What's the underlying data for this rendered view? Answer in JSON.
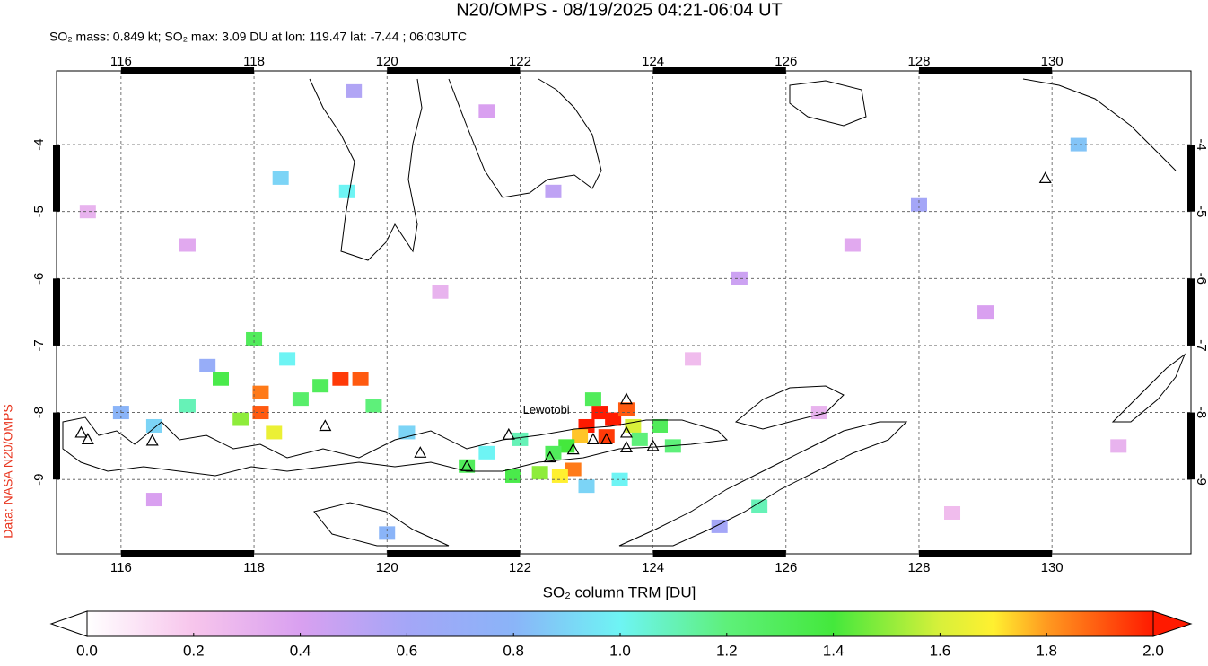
{
  "map": {
    "title": "N20/OMPS - 08/19/2025 04:21-06:04 UT",
    "subtitle": "SO₂ mass: 0.849 kt; SO₂ max: 3.09 DU at lon: 119.47 lat: -7.44 ; 06:03UTC",
    "credit": "Data: NASA N20/OMPS",
    "volcano_label": "Lewotobi",
    "xlim": [
      115.03,
      132.09
    ],
    "ylim": [
      -10.11,
      -2.9
    ],
    "xticks": [
      116,
      118,
      120,
      122,
      124,
      126,
      128,
      130
    ],
    "yticks": [
      -4,
      -5,
      -6,
      -7,
      -8,
      -9
    ],
    "grid": true,
    "colorbar": {
      "label": "SO₂ column TRM [DU]",
      "lim": [
        0,
        2
      ],
      "ticks": [
        {
          "value": 0,
          "label": "0.0"
        },
        {
          "value": 0.2,
          "label": "0.2"
        },
        {
          "value": 0.4,
          "label": "0.4"
        },
        {
          "value": 0.6,
          "label": "0.6"
        },
        {
          "value": 0.8,
          "label": "0.8"
        },
        {
          "value": 1,
          "label": "1.0"
        },
        {
          "value": 1.2,
          "label": "1.2"
        },
        {
          "value": 1.4,
          "label": "1.4"
        },
        {
          "value": 1.6,
          "label": "1.6"
        },
        {
          "value": 1.8,
          "label": "1.8"
        },
        {
          "value": 2,
          "label": "2.0"
        }
      ]
    },
    "colormap": [
      [
        0,
        "#ffffff"
      ],
      [
        0.2,
        "#f7c5ec"
      ],
      [
        0.4,
        "#d9a0f0"
      ],
      [
        0.6,
        "#a4a6f7"
      ],
      [
        0.8,
        "#8ab4f8"
      ],
      [
        1,
        "#6ef4f4"
      ],
      [
        1.2,
        "#5ef07a"
      ],
      [
        1.4,
        "#44e83c"
      ],
      [
        1.6,
        "#d8f03a"
      ],
      [
        1.7,
        "#fff030"
      ],
      [
        1.8,
        "#ff9a20"
      ],
      [
        2,
        "#ff1a00"
      ]
    ],
    "cells": [
      [
        123.2,
        -8.0,
        2.0
      ],
      [
        123.4,
        -8.1,
        2.0
      ],
      [
        123.0,
        -8.2,
        2.0
      ],
      [
        123.3,
        -8.35,
        1.95
      ],
      [
        123.6,
        -7.95,
        1.9
      ],
      [
        122.9,
        -8.35,
        1.75
      ],
      [
        123.7,
        -8.2,
        1.6
      ],
      [
        122.7,
        -8.5,
        1.4
      ],
      [
        122.5,
        -8.6,
        1.3
      ],
      [
        122.8,
        -8.85,
        1.85
      ],
      [
        122.6,
        -8.95,
        1.7
      ],
      [
        122.3,
        -8.9,
        1.5
      ],
      [
        121.9,
        -8.95,
        1.35
      ],
      [
        123.1,
        -7.8,
        1.3
      ],
      [
        123.8,
        -8.4,
        1.2
      ],
      [
        124.1,
        -8.2,
        1.3
      ],
      [
        124.3,
        -8.5,
        1.2
      ],
      [
        121.5,
        -8.6,
        1.0
      ],
      [
        121.2,
        -8.8,
        1.3
      ],
      [
        122.0,
        -8.4,
        1.1
      ],
      [
        123.0,
        -9.1,
        0.9
      ],
      [
        123.5,
        -9.0,
        1.0
      ],
      [
        118.1,
        -7.7,
        1.85
      ],
      [
        118.1,
        -8.0,
        1.9
      ],
      [
        118.3,
        -8.3,
        1.65
      ],
      [
        119.3,
        -7.5,
        1.95
      ],
      [
        119.6,
        -7.5,
        1.9
      ],
      [
        119.0,
        -7.6,
        1.3
      ],
      [
        117.8,
        -8.1,
        1.5
      ],
      [
        117.5,
        -7.5,
        1.35
      ],
      [
        118.7,
        -7.8,
        1.25
      ],
      [
        117.0,
        -7.9,
        1.1
      ],
      [
        116.5,
        -8.2,
        0.9
      ],
      [
        118.0,
        -6.9,
        1.3
      ],
      [
        118.5,
        -7.2,
        1.0
      ],
      [
        119.8,
        -7.9,
        1.2
      ],
      [
        120.3,
        -8.3,
        0.9
      ],
      [
        116.0,
        -8.0,
        0.8
      ],
      [
        117.3,
        -7.3,
        0.7
      ],
      [
        119.5,
        -3.2,
        0.55
      ],
      [
        122.5,
        -4.7,
        0.5
      ],
      [
        125.3,
        -6.0,
        0.45
      ],
      [
        127.0,
        -5.5,
        0.35
      ],
      [
        130.4,
        -4.0,
        0.85
      ],
      [
        128.0,
        -4.9,
        0.6
      ],
      [
        126.5,
        -8.0,
        0.3
      ],
      [
        129.0,
        -6.5,
        0.4
      ],
      [
        121.5,
        -3.5,
        0.4
      ],
      [
        115.5,
        -5.0,
        0.3
      ],
      [
        117.0,
        -5.5,
        0.35
      ],
      [
        125.0,
        -9.7,
        0.6
      ],
      [
        125.6,
        -9.4,
        1.1
      ],
      [
        120.0,
        -9.8,
        0.8
      ],
      [
        116.5,
        -9.3,
        0.4
      ],
      [
        131.0,
        -8.5,
        0.3
      ],
      [
        124.6,
        -7.2,
        0.25
      ],
      [
        128.5,
        -9.5,
        0.25
      ],
      [
        120.8,
        -6.2,
        0.3
      ],
      [
        118.4,
        -4.5,
        0.9
      ],
      [
        119.4,
        -4.7,
        1.0
      ]
    ],
    "volcanoes": [
      [
        115.4,
        -8.3
      ],
      [
        115.5,
        -8.4
      ],
      [
        116.47,
        -8.42
      ],
      [
        119.07,
        -8.2
      ],
      [
        120.5,
        -8.6
      ],
      [
        121.2,
        -8.8
      ],
      [
        121.83,
        -8.33
      ],
      [
        122.45,
        -8.67
      ],
      [
        122.8,
        -8.55
      ],
      [
        123.1,
        -8.4
      ],
      [
        123.3,
        -8.4
      ],
      [
        123.6,
        -8.3
      ],
      [
        123.6,
        -7.8
      ],
      [
        123.6,
        -8.52
      ],
      [
        124.0,
        -8.5
      ],
      [
        129.9,
        -4.5
      ]
    ]
  }
}
